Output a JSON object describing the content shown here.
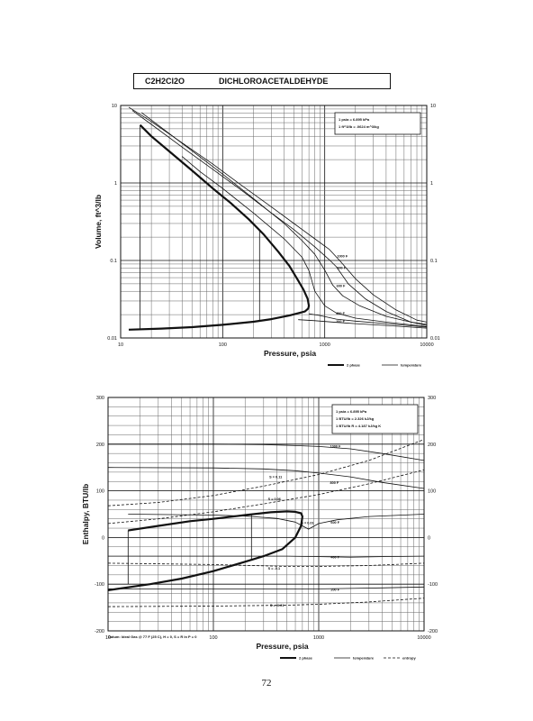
{
  "header": {
    "formula": "C2H2Cl2O",
    "name": "DICHLOROACETALDEHYDE"
  },
  "page_number": "72",
  "footnote": "Datum: Ideal Gas @ 77 F (25 C), H = 0, S = R ln P = 0",
  "colors": {
    "ink": "#111111",
    "grid": "#666666"
  },
  "chart_data": [
    {
      "type": "line",
      "xscale": "log",
      "yscale": "log",
      "xlim": [
        10,
        10000
      ],
      "ylim": [
        0.01,
        10
      ],
      "xlabel": "Pressure,  psia",
      "ylabel": "Volume, ft^3/lb",
      "x_ticks": [
        "10",
        "100",
        "1000",
        "10000"
      ],
      "y_ticks": [
        "0.01",
        "0.1",
        "1",
        "10"
      ],
      "y_ticks_right": [
        "0.01",
        "0.1",
        "1",
        "10"
      ],
      "info_lines": [
        "1 psia  =  6.895 kPa",
        "1 ft^3/lb  =  .0624 m^3/kg"
      ],
      "legend": [
        "2 phase",
        "temperature"
      ],
      "isotherm_labels": [
        {
          "text": "1000 F",
          "x": 1320,
          "y": 0.115
        },
        {
          "text": "800 F",
          "x": 1320,
          "y": 0.081
        },
        {
          "text": "600 F",
          "x": 1300,
          "y": 0.047
        },
        {
          "text": "400 F",
          "x": 1290,
          "y": 0.021
        },
        {
          "text": "200 F",
          "x": 1290,
          "y": 0.0165
        }
      ],
      "series": [
        {
          "style": "bold",
          "x": [
            15.5,
            20,
            30,
            50,
            80,
            120,
            180,
            250,
            350,
            450,
            550,
            620,
            680,
            700,
            690,
            640,
            560,
            450,
            300,
            200,
            100,
            50,
            25,
            12
          ],
          "y": [
            5.6,
            4.0,
            2.55,
            1.45,
            0.85,
            0.55,
            0.34,
            0.22,
            0.13,
            0.085,
            0.055,
            0.042,
            0.032,
            0.026,
            0.024,
            0.022,
            0.021,
            0.0195,
            0.0175,
            0.0162,
            0.0148,
            0.0138,
            0.0132,
            0.0128
          ]
        },
        {
          "style": "thin",
          "x": [
            12,
            20,
            40,
            80,
            150,
            300,
            500,
            800,
            1100,
            1400,
            2000,
            3000,
            5000,
            8000,
            10000
          ],
          "y": [
            9.5,
            6.2,
            3.3,
            1.75,
            0.95,
            0.49,
            0.3,
            0.19,
            0.14,
            0.1,
            0.058,
            0.036,
            0.023,
            0.017,
            0.016
          ]
        },
        {
          "style": "thin",
          "x": [
            13,
            20,
            40,
            80,
            150,
            300,
            500,
            800,
            1100,
            1300,
            1700,
            2500,
            4000,
            7000,
            10000
          ],
          "y": [
            8.6,
            5.7,
            2.9,
            1.5,
            0.82,
            0.41,
            0.25,
            0.15,
            0.103,
            0.083,
            0.05,
            0.032,
            0.022,
            0.016,
            0.015
          ]
        },
        {
          "style": "thin",
          "x": [
            16,
            25,
            50,
            100,
            200,
            400,
            600,
            800,
            1000,
            1200,
            1500,
            2200,
            4000,
            7000,
            10000
          ],
          "y": [
            8.1,
            5.2,
            2.6,
            1.3,
            0.63,
            0.3,
            0.18,
            0.12,
            0.075,
            0.048,
            0.035,
            0.026,
            0.019,
            0.016,
            0.0145
          ]
        },
        {
          "style": "thin",
          "x": [
            40,
            60,
            100,
            200,
            400,
            600,
            700,
            800,
            1000,
            1300,
            2000,
            4000,
            10000
          ],
          "y": [
            2.2,
            1.4,
            0.85,
            0.41,
            0.19,
            0.11,
            0.074,
            0.04,
            0.026,
            0.021,
            0.018,
            0.016,
            0.014
          ]
        },
        {
          "style": "thin",
          "x": [
            700,
            900,
            1300,
            2000,
            4000,
            10000
          ],
          "y": [
            0.0205,
            0.0195,
            0.0175,
            0.0165,
            0.0153,
            0.0138
          ]
        },
        {
          "style": "thin",
          "x": [
            550,
            800,
            1300,
            2000,
            4000,
            10000
          ],
          "y": [
            0.0172,
            0.0167,
            0.0159,
            0.0153,
            0.0145,
            0.0134
          ]
        },
        {
          "style": "thin",
          "x": [
            15.5,
            15.5
          ],
          "y": [
            5.6,
            0.0128
          ]
        },
        {
          "style": "thin",
          "x": [
            230,
            230
          ],
          "y": [
            0.25,
            0.0168
          ]
        }
      ]
    },
    {
      "type": "line",
      "xscale": "log",
      "yscale": "linear",
      "xlim": [
        10,
        10000
      ],
      "ylim": [
        -200,
        300
      ],
      "xlabel": "Pressure,  psia",
      "ylabel": "Enthalpy, BTU/lb",
      "x_ticks": [
        "10",
        "100",
        "1000",
        "10000"
      ],
      "y_ticks": [
        "-200",
        "-100",
        "0",
        "100",
        "200",
        "300"
      ],
      "y_ticks_right": [
        "-200",
        "-100",
        "0",
        "100",
        "200",
        "300"
      ],
      "info_lines": [
        "1 psia  =  6.895 kPa",
        "1 BTU/lb  =  2.326 kJ/kg",
        "1 BTU/lb R  =  4.187 kJ/kg K"
      ],
      "legend": [
        "2 phase",
        "temperature",
        "entropy"
      ],
      "isotherm_labels": [
        {
          "text": "1000 F",
          "x": 1280,
          "y": 196
        },
        {
          "text": "800 F",
          "x": 1280,
          "y": 118
        },
        {
          "text": "600 F",
          "x": 1300,
          "y": 33
        },
        {
          "text": "400 F",
          "x": 1300,
          "y": -42
        },
        {
          "text": "200 F",
          "x": 1300,
          "y": -111
        }
      ],
      "entropy_labels": [
        {
          "text": "S = 0.11",
          "x": 340,
          "y": 130
        },
        {
          "text": "S = 0.06",
          "x": 330,
          "y": 83
        },
        {
          "text": "S = 0.01",
          "x": 680,
          "y": 32
        },
        {
          "text": "S = -0.1",
          "x": 330,
          "y": -66
        },
        {
          "text": "S = -0.21",
          "x": 345,
          "y": -145
        }
      ],
      "series": [
        {
          "style": "bold",
          "x": [
            15.5,
            30,
            60,
            100,
            200,
            350,
            500,
            600,
            680,
            700,
            680,
            600,
            450,
            300,
            200,
            100,
            50,
            25,
            10
          ],
          "y": [
            15,
            25,
            35,
            40,
            48,
            54,
            56,
            55,
            52,
            45,
            25,
            0,
            -25,
            -40,
            -52,
            -72,
            -88,
            -100,
            -113
          ]
        },
        {
          "style": "thin",
          "x": [
            10,
            100,
            300,
            600,
            1000,
            2000,
            4000,
            10000
          ],
          "y": [
            200,
            200,
            199,
            197,
            195,
            190,
            180,
            165
          ]
        },
        {
          "style": "thin",
          "x": [
            10,
            100,
            300,
            600,
            1000,
            2000,
            4000,
            10000
          ],
          "y": [
            150,
            149,
            147,
            143,
            138,
            130,
            118,
            105
          ]
        },
        {
          "style": "thin",
          "x": [
            15.5,
            100,
            200,
            400,
            600,
            700,
            800,
            1000,
            1500,
            3000,
            10000
          ],
          "y": [
            50,
            48,
            46,
            41,
            33,
            25,
            18,
            30,
            38,
            45,
            50
          ]
        },
        {
          "style": "thin",
          "x": [
            10,
            100,
            500,
            1000,
            2000,
            4000,
            10000
          ],
          "y": [
            -40,
            -40,
            -40,
            -41,
            -42,
            -41,
            -40
          ]
        },
        {
          "style": "thin",
          "x": [
            10,
            100,
            500,
            1000,
            2000,
            4000,
            10000
          ],
          "y": [
            -110,
            -110,
            -110,
            -110,
            -109,
            -108,
            -106
          ]
        },
        {
          "style": "dashed",
          "x": [
            10,
            30,
            100,
            300,
            1000,
            3000,
            10000
          ],
          "y": [
            68,
            75,
            90,
            110,
            135,
            165,
            210
          ]
        },
        {
          "style": "dashed",
          "x": [
            10,
            30,
            100,
            300,
            1000,
            3000,
            10000
          ],
          "y": [
            30,
            40,
            55,
            72,
            92,
            115,
            145
          ]
        },
        {
          "style": "dashed",
          "x": [
            10,
            100,
            500,
            1000,
            3000,
            10000
          ],
          "y": [
            -55,
            -58,
            -62,
            -62,
            -60,
            -55
          ]
        },
        {
          "style": "dashed",
          "x": [
            10,
            100,
            500,
            1000,
            3000,
            10000
          ],
          "y": [
            -148,
            -147,
            -145,
            -143,
            -138,
            -130
          ]
        },
        {
          "style": "thin",
          "x": [
            15.5,
            15.5
          ],
          "y": [
            15,
            -100
          ]
        },
        {
          "style": "thin",
          "x": [
            230,
            230
          ],
          "y": [
            50,
            -48
          ]
        }
      ]
    }
  ]
}
